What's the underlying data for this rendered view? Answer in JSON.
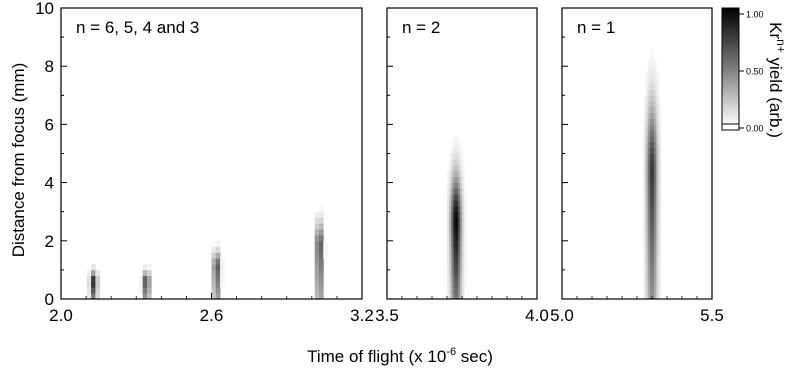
{
  "chart_data": {
    "type": "heatmap",
    "ylabel": "Distance from focus (mm)",
    "xlabel_main": "Time of flight (x 10",
    "xlabel_exp": "-6",
    "xlabel_tail": " sec)",
    "ylim": [
      0,
      10
    ],
    "yticks": [
      "0",
      "2",
      "4",
      "6",
      "8",
      "10"
    ],
    "colorbar": {
      "label_main": "Kr",
      "label_sup": "n+",
      "label_tail": " yield (arb.)",
      "range": [
        0,
        1
      ],
      "ticks": [
        "1.00",
        "0.50",
        "0.00"
      ],
      "tick_values": [
        1.0,
        0.5,
        0.0
      ]
    },
    "panels": [
      {
        "label": "n = 6, 5, 4 and 3",
        "xlim": [
          2.0,
          3.2
        ],
        "xticks": [
          2.0,
          2.6,
          3.2
        ],
        "xtick_labels": [
          "2.0",
          "2.6",
          "3.2"
        ],
        "peaks": [
          {
            "tof": 2.13,
            "y_peak": 0.6,
            "y_max": 1.2,
            "intensity": 0.85
          },
          {
            "tof": 2.34,
            "y_peak": 0.6,
            "y_max": 1.2,
            "intensity": 0.8
          },
          {
            "tof": 2.62,
            "y_peak": 1.1,
            "y_max": 2.0,
            "intensity": 0.75
          },
          {
            "tof": 3.03,
            "y_peak": 1.8,
            "y_max": 3.2,
            "intensity": 0.8
          }
        ]
      },
      {
        "label": "n = 2",
        "xlim": [
          3.5,
          4.0
        ],
        "xticks": [
          3.5,
          4.0
        ],
        "xtick_labels": [
          "3.5",
          "4.0"
        ],
        "peaks": [
          {
            "tof": 3.73,
            "y_peak": 2.6,
            "y_max": 5.5,
            "intensity": 1.0
          }
        ]
      },
      {
        "label": "n = 1",
        "xlim": [
          5.0,
          5.5
        ],
        "xticks": [
          5.0,
          5.5
        ],
        "xtick_labels": [
          "5.0",
          "5.5"
        ],
        "peaks": [
          {
            "tof": 5.3,
            "y_peak": 4.3,
            "y_max": 8.5,
            "intensity": 0.8
          }
        ]
      }
    ]
  }
}
